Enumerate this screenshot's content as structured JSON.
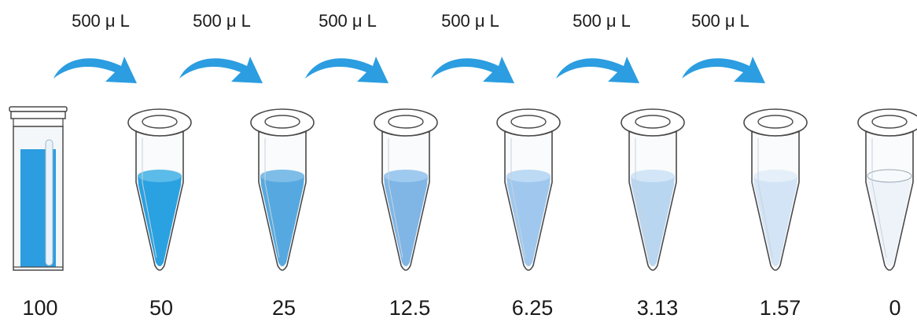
{
  "transfers": [
    {
      "label": "500 μ L"
    },
    {
      "label": "500 μ L"
    },
    {
      "label": "500 μ L"
    },
    {
      "label": "500 μ L"
    },
    {
      "label": "500 μ L"
    },
    {
      "label": "500 μ L"
    }
  ],
  "stock_vial": {
    "concentration": "100",
    "liquid_color": "#2b9de0"
  },
  "tubes": [
    {
      "concentration": "50",
      "liquid_color": "#2aa1e1",
      "surface_color": "#5bbbe9"
    },
    {
      "concentration": "25",
      "liquid_color": "#56a9e0",
      "surface_color": "#7dbde8"
    },
    {
      "concentration": "12.5",
      "liquid_color": "#7fb6e6",
      "surface_color": "#9fcaef"
    },
    {
      "concentration": "6.25",
      "liquid_color": "#a0c8ee",
      "surface_color": "#bcdaf4"
    },
    {
      "concentration": "3.13",
      "liquid_color": "#b9d6f1",
      "surface_color": "#d2e6f7"
    },
    {
      "concentration": "1.57",
      "liquid_color": "#d3e4f6",
      "surface_color": "#e4eff9"
    },
    {
      "concentration": "0",
      "liquid_color": "#eef3fa",
      "surface_color": "#f7fafd"
    }
  ],
  "colors": {
    "arrow": "#2b9de0",
    "outline": "#4a4a4a"
  }
}
